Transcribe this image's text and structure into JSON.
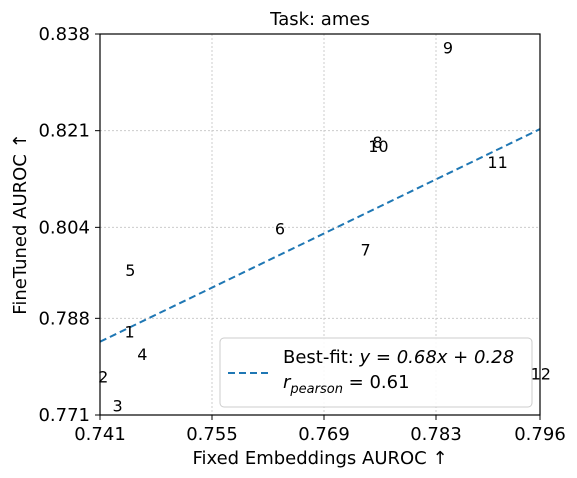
{
  "chart_data": {
    "type": "scatter",
    "title": "Task: ames",
    "xlabel": "Fixed Embeddings AUROC ↑",
    "ylabel": "FineTuned AUROC ↑",
    "xlim": [
      0.741,
      0.796
    ],
    "ylim": [
      0.771,
      0.838
    ],
    "xticks": [
      "0.741",
      "0.755",
      "0.769",
      "0.783",
      "0.796"
    ],
    "yticks": [
      "0.771",
      "0.788",
      "0.804",
      "0.821",
      "0.838"
    ],
    "grid": true,
    "points": [
      {
        "label": "1",
        "x": 0.7447,
        "y": 0.7857
      },
      {
        "label": "2",
        "x": 0.7414,
        "y": 0.7778
      },
      {
        "label": "3",
        "x": 0.7432,
        "y": 0.7727
      },
      {
        "label": "4",
        "x": 0.7463,
        "y": 0.7817
      },
      {
        "label": "5",
        "x": 0.7448,
        "y": 0.7965
      },
      {
        "label": "6",
        "x": 0.7635,
        "y": 0.8038
      },
      {
        "label": "7",
        "x": 0.7742,
        "y": 0.8001
      },
      {
        "label": "8",
        "x": 0.7757,
        "y": 0.819
      },
      {
        "label": "9",
        "x": 0.7845,
        "y": 0.8356
      },
      {
        "label": "10",
        "x": 0.7758,
        "y": 0.8183
      },
      {
        "label": "11",
        "x": 0.7907,
        "y": 0.8155
      },
      {
        "label": "12",
        "x": 0.7961,
        "y": 0.7783
      }
    ],
    "fit_line": {
      "slope": 0.68,
      "intercept": 0.28,
      "color": "#1f77b4",
      "style": "dashed"
    },
    "legend": {
      "placement": "lower-right",
      "fit_label_prefix": "Best-fit: ",
      "fit_equation": "y = 0.68x + 0.28",
      "pearson_symbol": "r",
      "pearson_subscript": "pearson",
      "pearson_value": " = 0.61"
    }
  }
}
